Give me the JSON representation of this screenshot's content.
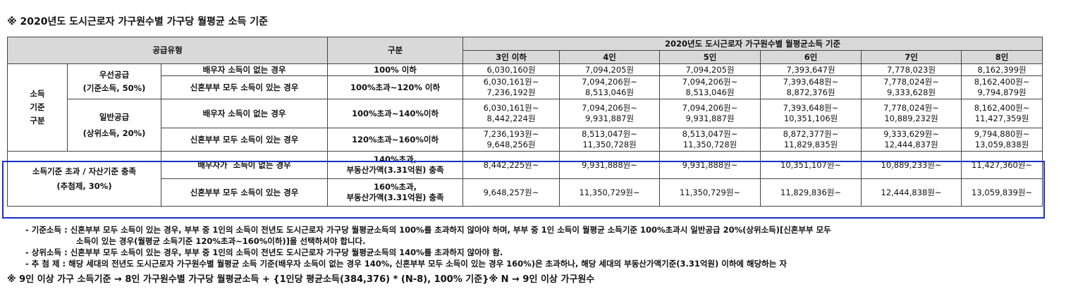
{
  "title": "※ 2020년도 도시근로자 가구원수별 가구당 월평균 소득 기준",
  "table": {
    "header": {
      "supply_type": "공급유형",
      "category": "구분",
      "income_group": "2020년도 도시근로자 가구원수별 월평균소득 기준",
      "household_sizes": [
        "3인 이하",
        "4인",
        "5인",
        "6인",
        "7인",
        "8인"
      ]
    },
    "income_criteria_label": "소득\n기준\n구분",
    "priority": {
      "name": "우선공급",
      "sub": "(기준소득, 50%)",
      "rows": [
        {
          "case": "배우자 소득이 없는 경우",
          "range": "100% 이하",
          "values": [
            "6,030,160원",
            "7,094,205원",
            "7,094,205원",
            "7,393,647원",
            "7,778,023원",
            "8,162,399원"
          ]
        },
        {
          "case": "신혼부부 모두 소득이 있는 경우",
          "range": "100%초과~120% 이하",
          "values": [
            "6,030,161원~\n7,236,192원",
            "7,094,206원~\n8,513,046원",
            "7,094,206원~\n8,513,046원",
            "7,393,648원~\n8,872,376원",
            "7,778,024원~\n9,333,628원",
            "8,162,400원~\n9,794,879원"
          ]
        }
      ]
    },
    "general": {
      "name": "일반공급",
      "sub": "(상위소득, 20%)",
      "rows": [
        {
          "case": "배우자 소득이 없는 경우",
          "range": "100%초과~140%이하",
          "values": [
            "6,030,161원~\n8,442,224원",
            "7,094,206원~\n9,931,887원",
            "7,094,206원~\n9,931,887원",
            "7,393,648원~\n10,351,106원",
            "7,778,024원~\n10,889,232원",
            "8,162,400원~\n11,427,359원"
          ]
        },
        {
          "case": "신혼부부 모두 소득이 있는 경우",
          "range": "120%초과~160%이하",
          "values": [
            "7,236,193원~\n9,648,256원",
            "8,513,047원~\n11,350,728원",
            "8,513,047원~\n11,350,728원",
            "8,872,377원~\n11,829,835원",
            "9,333,629원~\n12,444,837원",
            "9,794,880원~\n13,059,838원"
          ]
        }
      ]
    },
    "exceed": {
      "name": "소득기준 초과 / 자산기준 충족",
      "sub": "(추첨제, 30%)",
      "rows": [
        {
          "case": "배우자가  소득이 없는 경우",
          "range": "140%초과,\n부동산가액(3.31억원) 충족",
          "values": [
            "8,442,225원~",
            "9,931,888원~",
            "9,931,888원~",
            "10,351,107원~",
            "10,889,233원~",
            "11,427,360원~"
          ]
        },
        {
          "case": "신혼부부 모두 소득이 있는 경우",
          "range": "160%초과,\n부동산가액(3.31억원) 충족",
          "values": [
            "9,648,257원~",
            "11,350,729원~",
            "11,350,729원~",
            "11,829,836원~",
            "12,444,838원~",
            "13,059,839원~"
          ]
        }
      ]
    }
  },
  "notes": {
    "line1": "- 기준소득 : 신혼부부 모두 소득이 있는 경우, 부부 중 1인의 소득이 전년도 도시근로자 가구당 월평균소득의 100%를 초과하지 않아야 하며, 부부 중 1인 소득이 월평균 소득기준 100%초과시 일반공급 20%(상위소득)[신혼부부 모두",
    "line1b": "소득이 있는 경우(월평균 소득기준 120%초과~160%이하)]을 선택하셔야 합니다.",
    "line2": "- 상위소득 : 신혼부부 모두 소득이 있는 경우, 부부 중 1인의 소득이 전년도 도시근로자 가구당 월평균소득의 140%를 초과하지 않아야 함.",
    "line3": "- 추 첨 제 : 해당 세대의 전년도 도시근로자 가구원수별 월평균 소득 기준(배우자 소득이 없는 경우 140%, 신혼부부 모두 소득이 있는 경우 160%)은 초과하나, 해당 세대의 부동산가액기준(3.31억원) 이하에 해당하는 자"
  },
  "footer": "※ 9인 이상 가구 소득기준 → 8인 가구원수별 가구당 월평균소득 + {1인당 평균소득(384,376) * (N-8), 100% 기준}※ N → 9인 이상 가구원수"
}
